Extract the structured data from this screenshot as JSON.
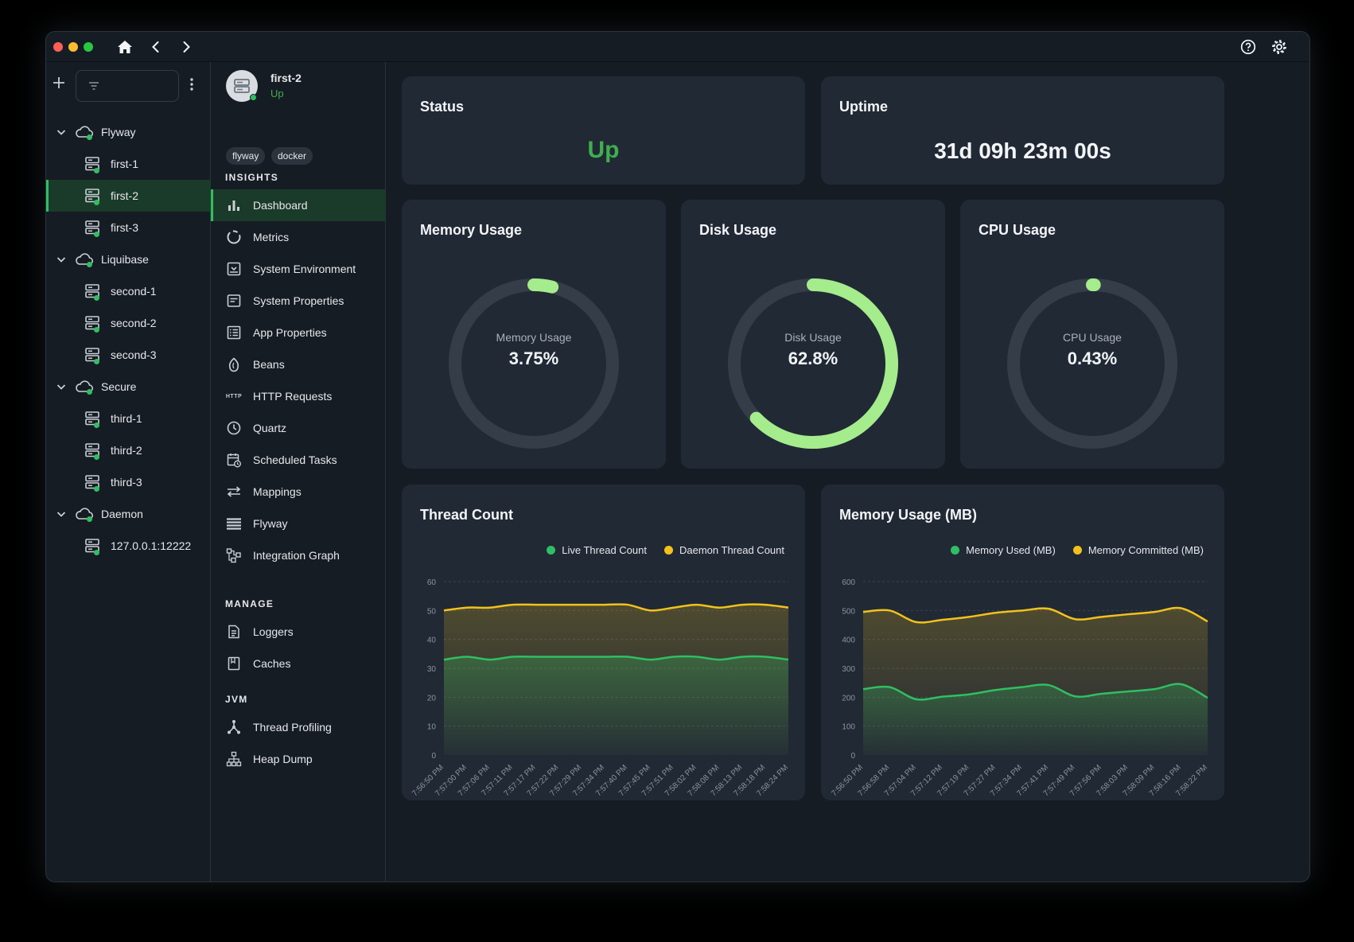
{
  "app": {
    "title_icons": [
      "home-icon",
      "back-icon",
      "forward-icon",
      "help-icon",
      "settings-icon"
    ]
  },
  "sidebar": {
    "filter_placeholder": "",
    "groups": [
      {
        "label": "Flyway",
        "items": [
          {
            "label": "first-1"
          },
          {
            "label": "first-2",
            "selected": true
          },
          {
            "label": "first-3"
          }
        ]
      },
      {
        "label": "Liquibase",
        "items": [
          {
            "label": "second-1"
          },
          {
            "label": "second-2"
          },
          {
            "label": "second-3"
          }
        ]
      },
      {
        "label": "Secure",
        "items": [
          {
            "label": "third-1"
          },
          {
            "label": "third-2"
          },
          {
            "label": "third-3"
          }
        ]
      },
      {
        "label": "Daemon",
        "items": [
          {
            "label": "127.0.0.1:12222"
          }
        ]
      }
    ]
  },
  "instance": {
    "name": "first-2",
    "status": "Up",
    "tags": [
      "flyway",
      "docker"
    ]
  },
  "nav": {
    "insights_title": "INSIGHTS",
    "insights": [
      "Dashboard",
      "Metrics",
      "System Environment",
      "System Properties",
      "App Properties",
      "Beans",
      "HTTP Requests",
      "Quartz",
      "Scheduled Tasks",
      "Mappings",
      "Flyway",
      "Integration Graph"
    ],
    "manage_title": "MANAGE",
    "manage": [
      "Loggers",
      "Caches"
    ],
    "jvm_title": "JVM",
    "jvm": [
      "Thread Profiling",
      "Heap Dump"
    ],
    "http_badge": "HTTP"
  },
  "status_card": {
    "title": "Status",
    "value": "Up"
  },
  "uptime_card": {
    "title": "Uptime",
    "value": "31d 09h 23m 00s"
  },
  "memory_card": {
    "title": "Memory Usage",
    "label": "Memory Usage",
    "value": "3.75%",
    "fraction": 0.0375
  },
  "disk_card": {
    "title": "Disk Usage",
    "label": "Disk Usage",
    "value": "62.8%",
    "fraction": 0.628
  },
  "cpu_card": {
    "title": "CPU Usage",
    "label": "CPU Usage",
    "value": "0.43%",
    "fraction": 0.0043
  },
  "colors": {
    "green": "#2fbf62",
    "accent_green": "#a5ec8c",
    "yellow": "#f2c21b",
    "status_up": "#3fae4f"
  },
  "chart_data": [
    {
      "type": "area",
      "title": "Thread Count",
      "x": [
        "7:56:50 PM",
        "7:57:00 PM",
        "7:57:06 PM",
        "7:57:11 PM",
        "7:57:17 PM",
        "7:57:22 PM",
        "7:57:29 PM",
        "7:57:34 PM",
        "7:57:40 PM",
        "7:57:45 PM",
        "7:57:51 PM",
        "7:58:02 PM",
        "7:58:08 PM",
        "7:58:13 PM",
        "7:58:18 PM",
        "7:58:24 PM"
      ],
      "ylim": [
        0,
        60
      ],
      "yticks": [
        0,
        10,
        20,
        30,
        40,
        50,
        60
      ],
      "grid": true,
      "legend": "top-right",
      "series": [
        {
          "name": "Live Thread Count",
          "color": "#2fbf62",
          "values": [
            33,
            34,
            33,
            34,
            34,
            34,
            34,
            34,
            34,
            33,
            34,
            34,
            33,
            34,
            34,
            33
          ]
        },
        {
          "name": "Daemon Thread Count",
          "color": "#f2c21b",
          "values": [
            50,
            51,
            51,
            52,
            52,
            52,
            52,
            52,
            52,
            50,
            51,
            52,
            51,
            52,
            52,
            51
          ]
        }
      ]
    },
    {
      "type": "area",
      "title": "Memory Usage (MB)",
      "x": [
        "7:56:50 PM",
        "7:56:58 PM",
        "7:57:04 PM",
        "7:57:12 PM",
        "7:57:19 PM",
        "7:57:27 PM",
        "7:57:34 PM",
        "7:57:41 PM",
        "7:57:49 PM",
        "7:57:56 PM",
        "7:58:03 PM",
        "7:58:09 PM",
        "7:58:16 PM",
        "7:58:22 PM"
      ],
      "ylim": [
        0,
        600
      ],
      "yticks": [
        0,
        100,
        200,
        300,
        400,
        500,
        600
      ],
      "grid": true,
      "legend": "top-right",
      "series": [
        {
          "name": "Memory Used (MB)",
          "color": "#2fbf62",
          "values": [
            228,
            235,
            193,
            202,
            210,
            225,
            235,
            242,
            203,
            212,
            220,
            228,
            245,
            198
          ]
        },
        {
          "name": "Memory Committed (MB)",
          "color": "#f2c21b",
          "values": [
            495,
            500,
            460,
            468,
            478,
            492,
            500,
            506,
            470,
            478,
            487,
            495,
            508,
            462
          ]
        }
      ]
    }
  ]
}
